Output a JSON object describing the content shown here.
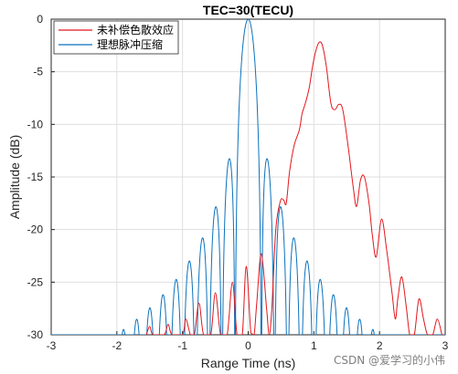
{
  "chart_data": {
    "type": "line",
    "title": "TEC=30(TECU)",
    "xlabel": "Range Time (ns)",
    "ylabel": "Amplitude (dB)",
    "xlim": [
      -3,
      3
    ],
    "ylim": [
      -30,
      0
    ],
    "xticks": [
      -3,
      -2,
      -1,
      0,
      1,
      2,
      3
    ],
    "yticks": [
      0,
      -5,
      -10,
      -15,
      -20,
      -25,
      -30
    ],
    "grid": true,
    "legend_position": "top-left",
    "series": [
      {
        "name": "未补偿色散效应",
        "color": "#e3161c",
        "points": [
          [
            -1.55,
            -30
          ],
          [
            -1.5,
            -29.2
          ],
          [
            -1.45,
            -30
          ],
          [
            -1.28,
            -30
          ],
          [
            -1.22,
            -29.0
          ],
          [
            -1.16,
            -30
          ],
          [
            -1.0,
            -30
          ],
          [
            -0.95,
            -28.5
          ],
          [
            -0.88,
            -30
          ],
          [
            -0.82,
            -30
          ],
          [
            -0.75,
            -27.0
          ],
          [
            -0.68,
            -30
          ],
          [
            -0.57,
            -30
          ],
          [
            -0.5,
            -26.0
          ],
          [
            -0.42,
            -30
          ],
          [
            -0.32,
            -30
          ],
          [
            -0.24,
            -25.0
          ],
          [
            -0.17,
            -30
          ],
          [
            -0.09,
            -30
          ],
          [
            -0.03,
            -23.5
          ],
          [
            0.04,
            -29.8
          ],
          [
            0.09,
            -30
          ],
          [
            0.13,
            -27.0
          ],
          [
            0.2,
            -22.3
          ],
          [
            0.28,
            -27.5
          ],
          [
            0.32,
            -30
          ],
          [
            0.36,
            -27.5
          ],
          [
            0.42,
            -20.0
          ],
          [
            0.49,
            -17.3
          ],
          [
            0.54,
            -17.2
          ],
          [
            0.58,
            -17.5
          ],
          [
            0.63,
            -14.5
          ],
          [
            0.7,
            -12.0
          ],
          [
            0.78,
            -10.5
          ],
          [
            0.82,
            -9.0
          ],
          [
            0.87,
            -8.0
          ],
          [
            0.93,
            -6.5
          ],
          [
            0.98,
            -4.5
          ],
          [
            1.03,
            -3.0
          ],
          [
            1.08,
            -2.2
          ],
          [
            1.13,
            -2.5
          ],
          [
            1.19,
            -4.5
          ],
          [
            1.26,
            -8.0
          ],
          [
            1.32,
            -8.6
          ],
          [
            1.38,
            -8.1
          ],
          [
            1.44,
            -8.6
          ],
          [
            1.52,
            -12.0
          ],
          [
            1.6,
            -16.0
          ],
          [
            1.65,
            -17.8
          ],
          [
            1.71,
            -15.3
          ],
          [
            1.77,
            -15.0
          ],
          [
            1.84,
            -17.5
          ],
          [
            1.89,
            -20.5
          ],
          [
            1.95,
            -22.6
          ],
          [
            2.03,
            -19.0
          ],
          [
            2.11,
            -22.0
          ],
          [
            2.19,
            -26.0
          ],
          [
            2.24,
            -28.5
          ],
          [
            2.28,
            -26.5
          ],
          [
            2.34,
            -24.5
          ],
          [
            2.41,
            -27.5
          ],
          [
            2.46,
            -30
          ],
          [
            2.53,
            -30
          ],
          [
            2.6,
            -26.6
          ],
          [
            2.67,
            -28.5
          ],
          [
            2.73,
            -30
          ],
          [
            2.81,
            -30
          ],
          [
            2.88,
            -28.5
          ],
          [
            2.95,
            -30
          ]
        ]
      },
      {
        "name": "理想脉冲压缩",
        "color": "#0b72bd",
        "type": "sinc",
        "peak_db": 0,
        "null_spacing_ns": 0.2,
        "center_ns": 0
      }
    ]
  },
  "watermark": "CSDN @爱学习的小伟"
}
